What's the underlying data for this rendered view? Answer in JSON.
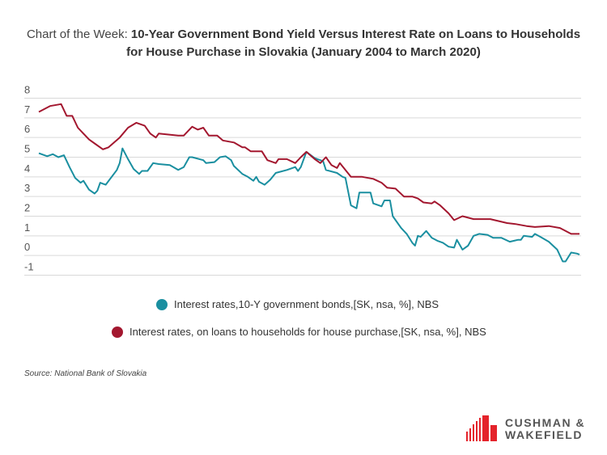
{
  "chart_data": {
    "type": "line",
    "title_prefix": "Chart of the Week: ",
    "title_bold_line1": "10-Year Government Bond Yield Versus Interest Rate on Loans to Households",
    "title_bold_line2": "for House Purchase in Slovakia (January 2004 to March 2020)",
    "xlabel": "",
    "ylabel": "",
    "xlim": [
      "2004-01",
      "2020-03"
    ],
    "ylim": [
      -1,
      8
    ],
    "yticks": [
      "8",
      "7",
      "6",
      "5",
      "4",
      "3",
      "2",
      "1",
      "0",
      "-1"
    ],
    "grid": true,
    "legend_position": "bottom",
    "series": [
      {
        "name": "Interest rates,10-Y government bonds,[SK, nsa, %], NBS",
        "color": "#1a8fa0",
        "points": [
          [
            "2004-01",
            5.2
          ],
          [
            "2004-04",
            5.05
          ],
          [
            "2004-06",
            5.15
          ],
          [
            "2004-08",
            5.0
          ],
          [
            "2004-10",
            5.1
          ],
          [
            "2004-12",
            4.5
          ],
          [
            "2005-02",
            3.95
          ],
          [
            "2005-04",
            3.7
          ],
          [
            "2005-05",
            3.8
          ],
          [
            "2005-07",
            3.35
          ],
          [
            "2005-09",
            3.15
          ],
          [
            "2005-10",
            3.3
          ],
          [
            "2005-11",
            3.7
          ],
          [
            "2006-01",
            3.6
          ],
          [
            "2006-05",
            4.35
          ],
          [
            "2006-06",
            4.7
          ],
          [
            "2006-07",
            5.45
          ],
          [
            "2006-09",
            4.9
          ],
          [
            "2006-11",
            4.4
          ],
          [
            "2007-01",
            4.15
          ],
          [
            "2007-02",
            4.3
          ],
          [
            "2007-04",
            4.3
          ],
          [
            "2007-06",
            4.7
          ],
          [
            "2007-08",
            4.65
          ],
          [
            "2007-12",
            4.6
          ],
          [
            "2008-03",
            4.35
          ],
          [
            "2008-05",
            4.5
          ],
          [
            "2008-07",
            5.0
          ],
          [
            "2008-08",
            5.0
          ],
          [
            "2008-12",
            4.85
          ],
          [
            "2009-01",
            4.7
          ],
          [
            "2009-04",
            4.75
          ],
          [
            "2009-06",
            5.0
          ],
          [
            "2009-08",
            5.05
          ],
          [
            "2009-10",
            4.85
          ],
          [
            "2009-11",
            4.55
          ],
          [
            "2010-02",
            4.15
          ],
          [
            "2010-04",
            4.0
          ],
          [
            "2010-06",
            3.8
          ],
          [
            "2010-07",
            4.0
          ],
          [
            "2010-08",
            3.75
          ],
          [
            "2010-10",
            3.6
          ],
          [
            "2010-12",
            3.85
          ],
          [
            "2011-02",
            4.2
          ],
          [
            "2011-06",
            4.35
          ],
          [
            "2011-09",
            4.5
          ],
          [
            "2011-10",
            4.3
          ],
          [
            "2011-11",
            4.5
          ],
          [
            "2012-01",
            5.27
          ],
          [
            "2012-04",
            4.95
          ],
          [
            "2012-07",
            4.8
          ],
          [
            "2012-08",
            4.35
          ],
          [
            "2012-12",
            4.2
          ],
          [
            "2013-02",
            4.0
          ],
          [
            "2013-03",
            3.95
          ],
          [
            "2013-05",
            2.55
          ],
          [
            "2013-07",
            2.4
          ],
          [
            "2013-08",
            3.2
          ],
          [
            "2013-12",
            3.2
          ],
          [
            "2014-01",
            2.65
          ],
          [
            "2014-04",
            2.5
          ],
          [
            "2014-05",
            2.8
          ],
          [
            "2014-07",
            2.8
          ],
          [
            "2014-08",
            2.0
          ],
          [
            "2014-11",
            1.4
          ],
          [
            "2015-01",
            1.1
          ],
          [
            "2015-03",
            0.65
          ],
          [
            "2015-04",
            0.5
          ],
          [
            "2015-05",
            1.0
          ],
          [
            "2015-06",
            0.95
          ],
          [
            "2015-08",
            1.25
          ],
          [
            "2015-10",
            0.9
          ],
          [
            "2015-12",
            0.75
          ],
          [
            "2016-02",
            0.65
          ],
          [
            "2016-04",
            0.45
          ],
          [
            "2016-06",
            0.4
          ],
          [
            "2016-07",
            0.8
          ],
          [
            "2016-09",
            0.3
          ],
          [
            "2016-11",
            0.5
          ],
          [
            "2017-01",
            1.0
          ],
          [
            "2017-03",
            1.1
          ],
          [
            "2017-06",
            1.05
          ],
          [
            "2017-08",
            0.9
          ],
          [
            "2017-11",
            0.9
          ],
          [
            "2018-02",
            0.7
          ],
          [
            "2018-05",
            0.8
          ],
          [
            "2018-06",
            0.8
          ],
          [
            "2018-07",
            1.0
          ],
          [
            "2018-10",
            0.95
          ],
          [
            "2018-11",
            1.1
          ],
          [
            "2019-01",
            0.95
          ],
          [
            "2019-04",
            0.7
          ],
          [
            "2019-07",
            0.3
          ],
          [
            "2019-09",
            -0.3
          ],
          [
            "2019-10",
            -0.3
          ],
          [
            "2019-12",
            0.15
          ],
          [
            "2020-02",
            0.1
          ],
          [
            "2020-03",
            0.05
          ]
        ]
      },
      {
        "name": "Interest rates, on loans to households for house purchase,[SK, nsa, %], NBS",
        "color": "#a3172f",
        "points": [
          [
            "2004-01",
            7.3
          ],
          [
            "2004-05",
            7.6
          ],
          [
            "2004-09",
            7.7
          ],
          [
            "2004-11",
            7.1
          ],
          [
            "2005-01",
            7.1
          ],
          [
            "2005-03",
            6.5
          ],
          [
            "2005-05",
            6.2
          ],
          [
            "2005-07",
            5.9
          ],
          [
            "2005-09",
            5.7
          ],
          [
            "2005-12",
            5.4
          ],
          [
            "2006-02",
            5.5
          ],
          [
            "2006-06",
            6.0
          ],
          [
            "2006-09",
            6.5
          ],
          [
            "2006-12",
            6.75
          ],
          [
            "2007-03",
            6.6
          ],
          [
            "2007-05",
            6.2
          ],
          [
            "2007-07",
            6.0
          ],
          [
            "2007-08",
            6.2
          ],
          [
            "2008-03",
            6.1
          ],
          [
            "2008-05",
            6.1
          ],
          [
            "2008-08",
            6.55
          ],
          [
            "2008-10",
            6.4
          ],
          [
            "2008-12",
            6.5
          ],
          [
            "2009-02",
            6.1
          ],
          [
            "2009-05",
            6.1
          ],
          [
            "2009-07",
            5.85
          ],
          [
            "2009-11",
            5.75
          ],
          [
            "2010-02",
            5.5
          ],
          [
            "2010-03",
            5.5
          ],
          [
            "2010-05",
            5.3
          ],
          [
            "2010-09",
            5.3
          ],
          [
            "2010-11",
            4.85
          ],
          [
            "2011-02",
            4.7
          ],
          [
            "2011-03",
            4.9
          ],
          [
            "2011-06",
            4.9
          ],
          [
            "2011-09",
            4.7
          ],
          [
            "2011-11",
            5.0
          ],
          [
            "2012-01",
            5.27
          ],
          [
            "2012-04",
            4.9
          ],
          [
            "2012-06",
            4.7
          ],
          [
            "2012-08",
            5.0
          ],
          [
            "2012-10",
            4.6
          ],
          [
            "2012-12",
            4.45
          ],
          [
            "2013-01",
            4.7
          ],
          [
            "2013-05",
            4.0
          ],
          [
            "2013-09",
            4.0
          ],
          [
            "2014-01",
            3.9
          ],
          [
            "2014-04",
            3.7
          ],
          [
            "2014-06",
            3.45
          ],
          [
            "2014-09",
            3.4
          ],
          [
            "2014-12",
            3.0
          ],
          [
            "2015-03",
            3.0
          ],
          [
            "2015-05",
            2.9
          ],
          [
            "2015-07",
            2.7
          ],
          [
            "2015-10",
            2.65
          ],
          [
            "2015-11",
            2.75
          ],
          [
            "2016-01",
            2.55
          ],
          [
            "2016-04",
            2.15
          ],
          [
            "2016-06",
            1.8
          ],
          [
            "2016-09",
            2.0
          ],
          [
            "2017-01",
            1.85
          ],
          [
            "2017-07",
            1.85
          ],
          [
            "2018-01",
            1.65
          ],
          [
            "2018-04",
            1.6
          ],
          [
            "2018-08",
            1.5
          ],
          [
            "2018-11",
            1.45
          ],
          [
            "2019-04",
            1.5
          ],
          [
            "2019-08",
            1.4
          ],
          [
            "2019-12",
            1.1
          ],
          [
            "2020-03",
            1.1
          ]
        ]
      }
    ]
  },
  "source": "Source: National Bank of Slovakia",
  "logo": {
    "line1": "CUSHMAN &",
    "line2": "WAKEFIELD",
    "color": "#e4232b"
  }
}
